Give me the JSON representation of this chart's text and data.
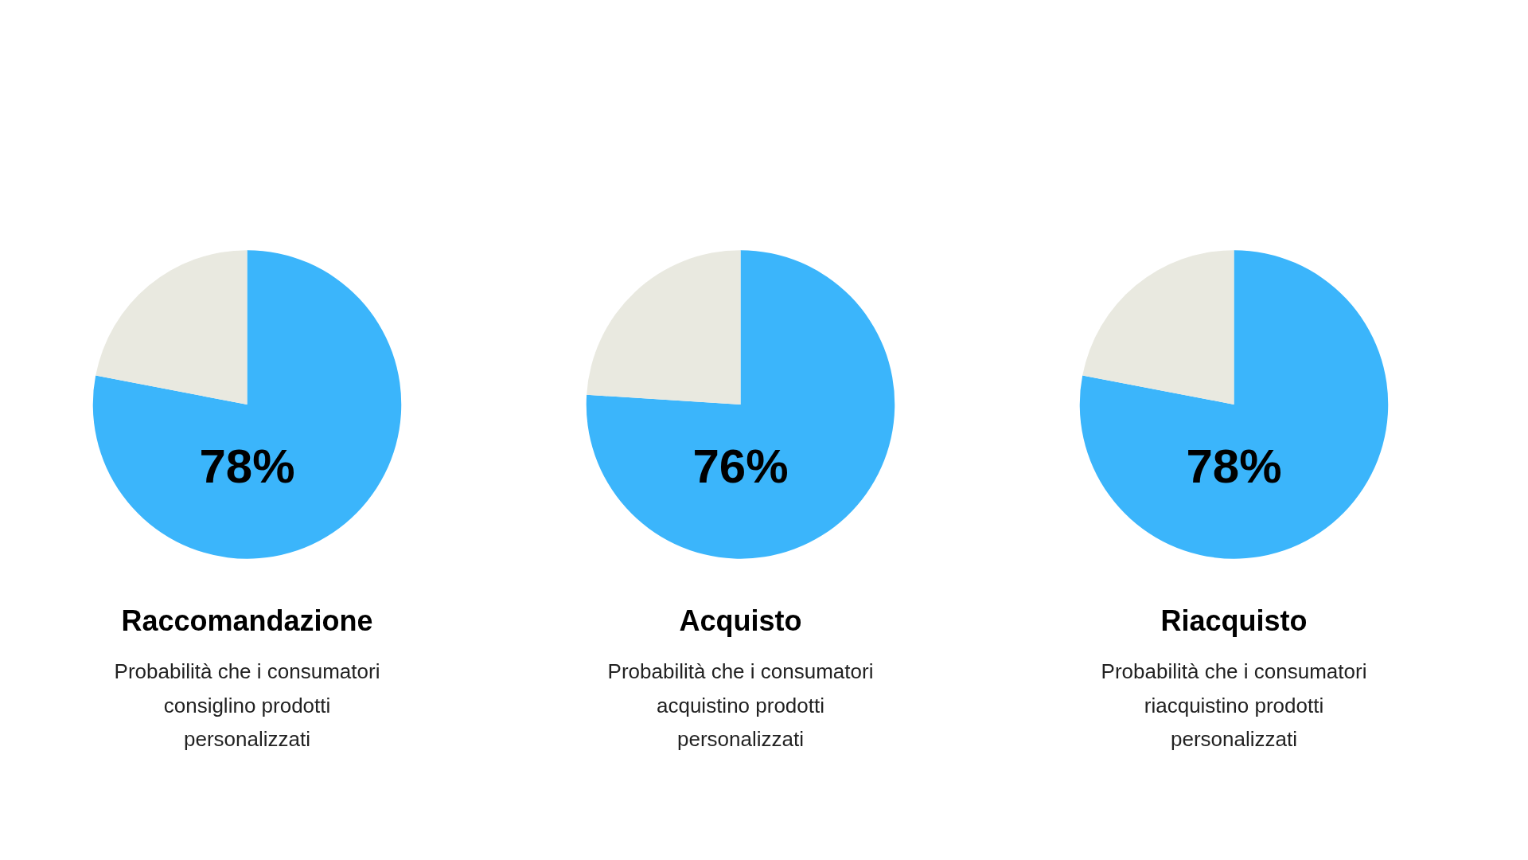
{
  "chart_data": [
    {
      "type": "pie",
      "title": "Raccomandazione",
      "subtitle": "Probabilità che i consumatori\nconsiglino prodotti\npersonalizzati",
      "categories": [
        null,
        null
      ],
      "values": [
        78,
        22
      ],
      "colors": [
        "#3bb5fb",
        "#e9e9e0"
      ],
      "value_labels": [
        "78%",
        null
      ]
    },
    {
      "type": "pie",
      "title": "Acquisto",
      "subtitle": "Probabilità che i consumatori\nacquistino prodotti\npersonalizzati",
      "categories": [
        null,
        null
      ],
      "values": [
        76,
        24
      ],
      "colors": [
        "#3bb5fb",
        "#e9e9e0"
      ],
      "value_labels": [
        "76%",
        null
      ]
    },
    {
      "type": "pie",
      "title": "Riacquisto",
      "subtitle": "Probabilità che i consumatori\nriacquistino prodotti\npersonalizzati",
      "categories": [
        null,
        null
      ],
      "values": [
        78,
        22
      ],
      "colors": [
        "#3bb5fb",
        "#e9e9e0"
      ],
      "value_labels": [
        "78%",
        null
      ]
    }
  ]
}
